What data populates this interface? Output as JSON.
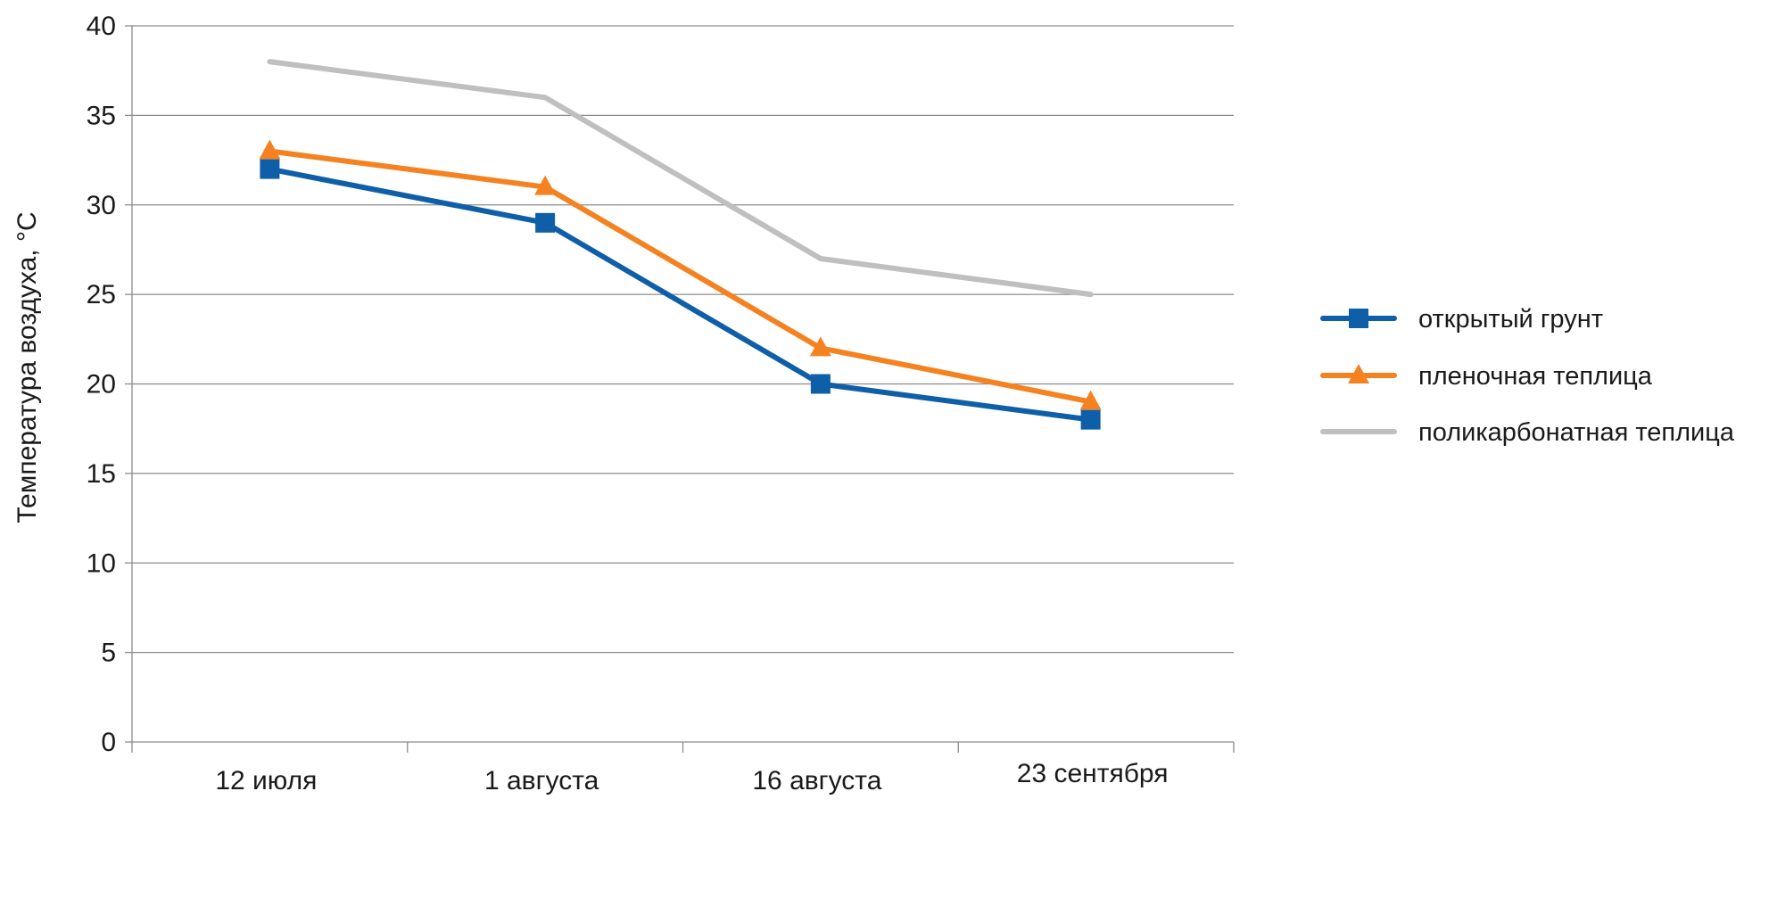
{
  "chart_data": {
    "type": "line",
    "title": "",
    "ylabel": "Температура воздуха, °C",
    "xlabel": "",
    "categories": [
      "12 июля",
      "1 августа",
      "16 августа",
      "23 сентября"
    ],
    "ylim": [
      0,
      40
    ],
    "yticks": [
      0,
      5,
      10,
      15,
      20,
      25,
      30,
      35,
      40
    ],
    "grid": true,
    "legend": "right",
    "series": [
      {
        "name": "открытый грунт",
        "values": [
          32,
          29,
          20,
          18
        ],
        "color": "#0f5fa8",
        "marker": "square"
      },
      {
        "name": "пленочная теплица",
        "values": [
          33,
          31,
          22,
          19
        ],
        "color": "#f58220",
        "marker": "triangle"
      },
      {
        "name": "поликарбонатная теплица",
        "values": [
          38,
          36,
          27,
          25
        ],
        "color": "#bfbfbf",
        "marker": "none"
      }
    ]
  }
}
